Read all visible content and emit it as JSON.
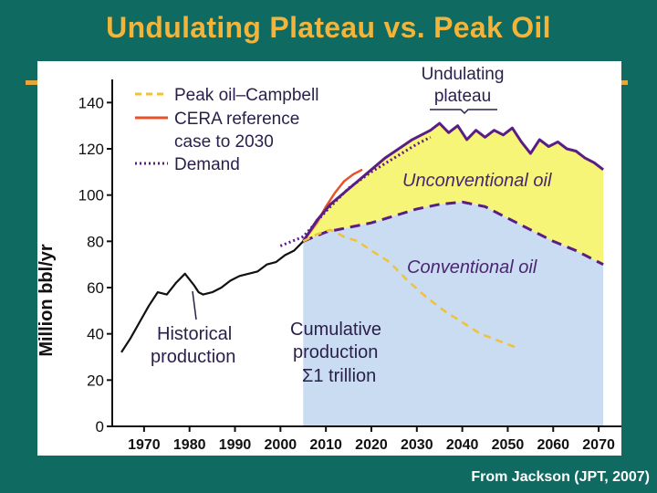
{
  "slide": {
    "title": "Undulating Plateau vs. Peak Oil",
    "credit": "From Jackson (JPT, 2007)"
  },
  "colors": {
    "background": "#0f6b62",
    "title": "#f2b43a",
    "unconventional_fill": "#f6f578",
    "conventional_fill": "#c9dcf1",
    "purple": "#5a1d84",
    "campbell": "#f0c23a",
    "cera": "#e8522a"
  },
  "chart_data": {
    "type": "area",
    "ylabel": "Million bbl/yr",
    "xlabel": "",
    "xlim": [
      1963,
      2075
    ],
    "ylim": [
      0,
      150
    ],
    "xticks": [
      "1970",
      "1980",
      "1990",
      "2000",
      "2010",
      "2020",
      "2030",
      "2040",
      "2050",
      "2060",
      "2070"
    ],
    "yticks": [
      "0",
      "20",
      "40",
      "60",
      "80",
      "100",
      "120",
      "140"
    ],
    "legend": {
      "position": "top-left",
      "entries": [
        {
          "label": "Peak oil–Campbell",
          "style": "dashed",
          "color": "#f0c23a"
        },
        {
          "label": "CERA reference",
          "style": "solid",
          "color": "#e8522a"
        },
        {
          "label": "case to 2030",
          "style": "none",
          "color": ""
        },
        {
          "label": "Demand",
          "style": "dotted",
          "color": "#5a1d84"
        }
      ]
    },
    "annotations": {
      "undulating_line1": "Undulating",
      "undulating_line2": "plateau",
      "unconventional": "Unconventional oil",
      "conventional": "Conventional oil",
      "historical_line1": "Historical",
      "historical_line2": "production",
      "cumulative_line1": "Cumulative",
      "cumulative_line2": "production",
      "cumulative_line3": "Σ1 trillion"
    },
    "series": [
      {
        "name": "Historical production",
        "x": [
          1965,
          1967,
          1969,
          1971,
          1973,
          1975,
          1977,
          1979,
          1981,
          1982,
          1983,
          1985,
          1987,
          1989,
          1991,
          1993,
          1995,
          1997,
          1999,
          2001,
          2003,
          2005
        ],
        "values": [
          32,
          38,
          45,
          52,
          58,
          57,
          62,
          66,
          61,
          58,
          57,
          58,
          60,
          63,
          65,
          66,
          67,
          70,
          71,
          74,
          76,
          80
        ]
      },
      {
        "name": "Undulating plateau",
        "x": [
          2005,
          2008,
          2011,
          2014,
          2017,
          2020,
          2023,
          2026,
          2029,
          2031,
          2033,
          2035,
          2037,
          2039,
          2041,
          2043,
          2045,
          2047,
          2049,
          2051,
          2053,
          2055,
          2057,
          2059,
          2061,
          2063,
          2065,
          2067,
          2069,
          2071
        ],
        "values": [
          80,
          89,
          96,
          101,
          106,
          111,
          116,
          120,
          124,
          126,
          128,
          131,
          127,
          130,
          124,
          128,
          125,
          128,
          126,
          129,
          123,
          118,
          124,
          121,
          123,
          120,
          119,
          116,
          114,
          111
        ]
      },
      {
        "name": "Conventional oil",
        "x": [
          2005,
          2010,
          2015,
          2020,
          2025,
          2030,
          2035,
          2040,
          2045,
          2050,
          2055,
          2060,
          2065,
          2071
        ],
        "values": [
          80,
          84,
          86,
          88,
          91,
          94,
          96,
          97,
          95,
          90,
          85,
          80,
          76,
          70
        ]
      },
      {
        "name": "Peak oil–Campbell",
        "x": [
          2005,
          2008,
          2011,
          2014,
          2017,
          2020,
          2024,
          2028,
          2032,
          2036,
          2040,
          2044,
          2048,
          2052
        ],
        "values": [
          80,
          83,
          85,
          82,
          80,
          76,
          71,
          63,
          56,
          50,
          45,
          40,
          37,
          34
        ]
      },
      {
        "name": "CERA reference case to 2030",
        "x": [
          2005,
          2008,
          2010,
          2012,
          2014,
          2016,
          2018
        ],
        "values": [
          80,
          88,
          95,
          101,
          106,
          109,
          111
        ]
      },
      {
        "name": "Demand",
        "x": [
          2000,
          2005,
          2010,
          2015,
          2020,
          2025,
          2030,
          2033
        ],
        "values": [
          78,
          82,
          93,
          103,
          110,
          116,
          122,
          125
        ]
      }
    ]
  }
}
